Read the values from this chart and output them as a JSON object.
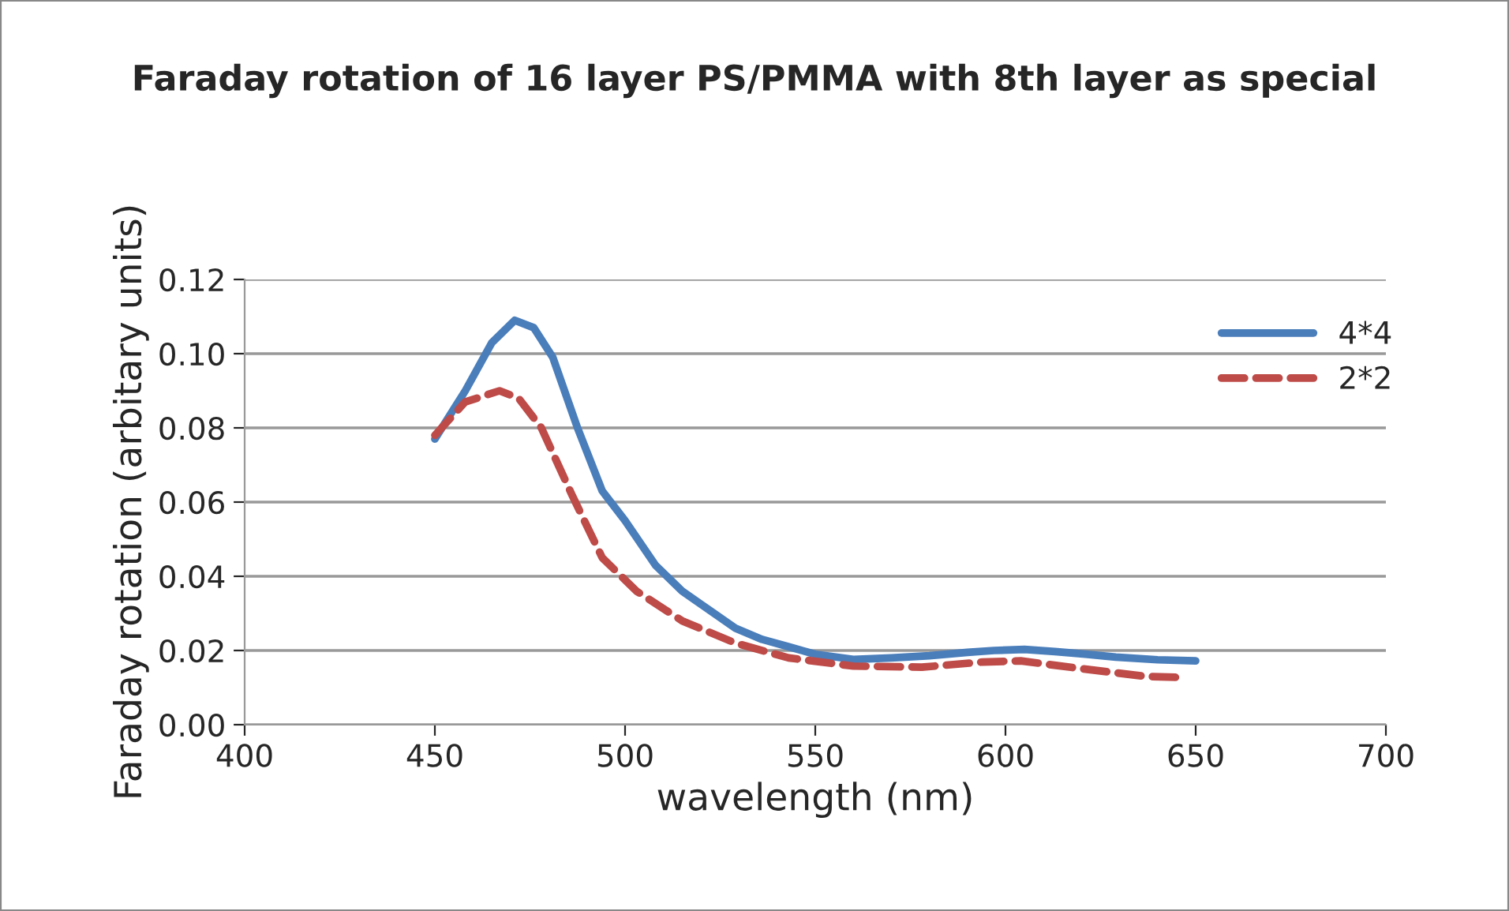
{
  "chart_data": {
    "type": "line",
    "title": "Faraday rotation of 16 layer PS/PMMA with 8th layer as special",
    "xlabel": "wavelength (nm)",
    "ylabel": "Faraday rotation (arbitary units)",
    "xlim": [
      400,
      700
    ],
    "xticks": [
      400,
      450,
      500,
      550,
      600,
      650,
      700
    ],
    "ylim": [
      0,
      0.12
    ],
    "yticks": [
      {
        "value": 0,
        "label": "0.00"
      },
      {
        "value": 0.02,
        "label": "0.02"
      },
      {
        "value": 0.04,
        "label": "0.04"
      },
      {
        "value": 0.06,
        "label": "0.06"
      },
      {
        "value": 0.08,
        "label": "0.08"
      },
      {
        "value": 0.1,
        "label": "0.10"
      },
      {
        "value": 0.12,
        "label": "0.12"
      }
    ],
    "grid": "y",
    "legend": "top right",
    "marker": "none",
    "series": [
      {
        "name": "4*4",
        "color": "#4a7ebb",
        "line_style": "solid",
        "x": [
          450,
          458,
          465,
          471,
          476,
          481,
          487.5,
          494,
          500,
          508,
          515,
          522,
          529,
          536,
          543,
          550,
          560,
          570,
          580,
          590,
          597,
          605,
          613,
          621,
          629,
          640,
          650
        ],
        "values": [
          0.077,
          0.09,
          0.103,
          0.109,
          0.107,
          0.099,
          0.08,
          0.063,
          0.055,
          0.043,
          0.036,
          0.031,
          0.026,
          0.023,
          0.021,
          0.019,
          0.0176,
          0.018,
          0.0186,
          0.0195,
          0.02,
          0.0203,
          0.0197,
          0.019,
          0.0182,
          0.0175,
          0.0172
        ]
      },
      {
        "name": "2*2",
        "color": "#be4b48",
        "line_style": "dashed",
        "x": [
          450,
          458,
          467,
          472,
          478,
          486,
          494,
          503,
          515,
          529,
          543,
          560,
          578,
          594,
          604,
          620,
          637,
          647
        ],
        "values": [
          0.078,
          0.087,
          0.09,
          0.088,
          0.08,
          0.062,
          0.045,
          0.036,
          0.028,
          0.022,
          0.018,
          0.0158,
          0.0155,
          0.0169,
          0.0172,
          0.0151,
          0.013,
          0.0127
        ]
      }
    ]
  }
}
